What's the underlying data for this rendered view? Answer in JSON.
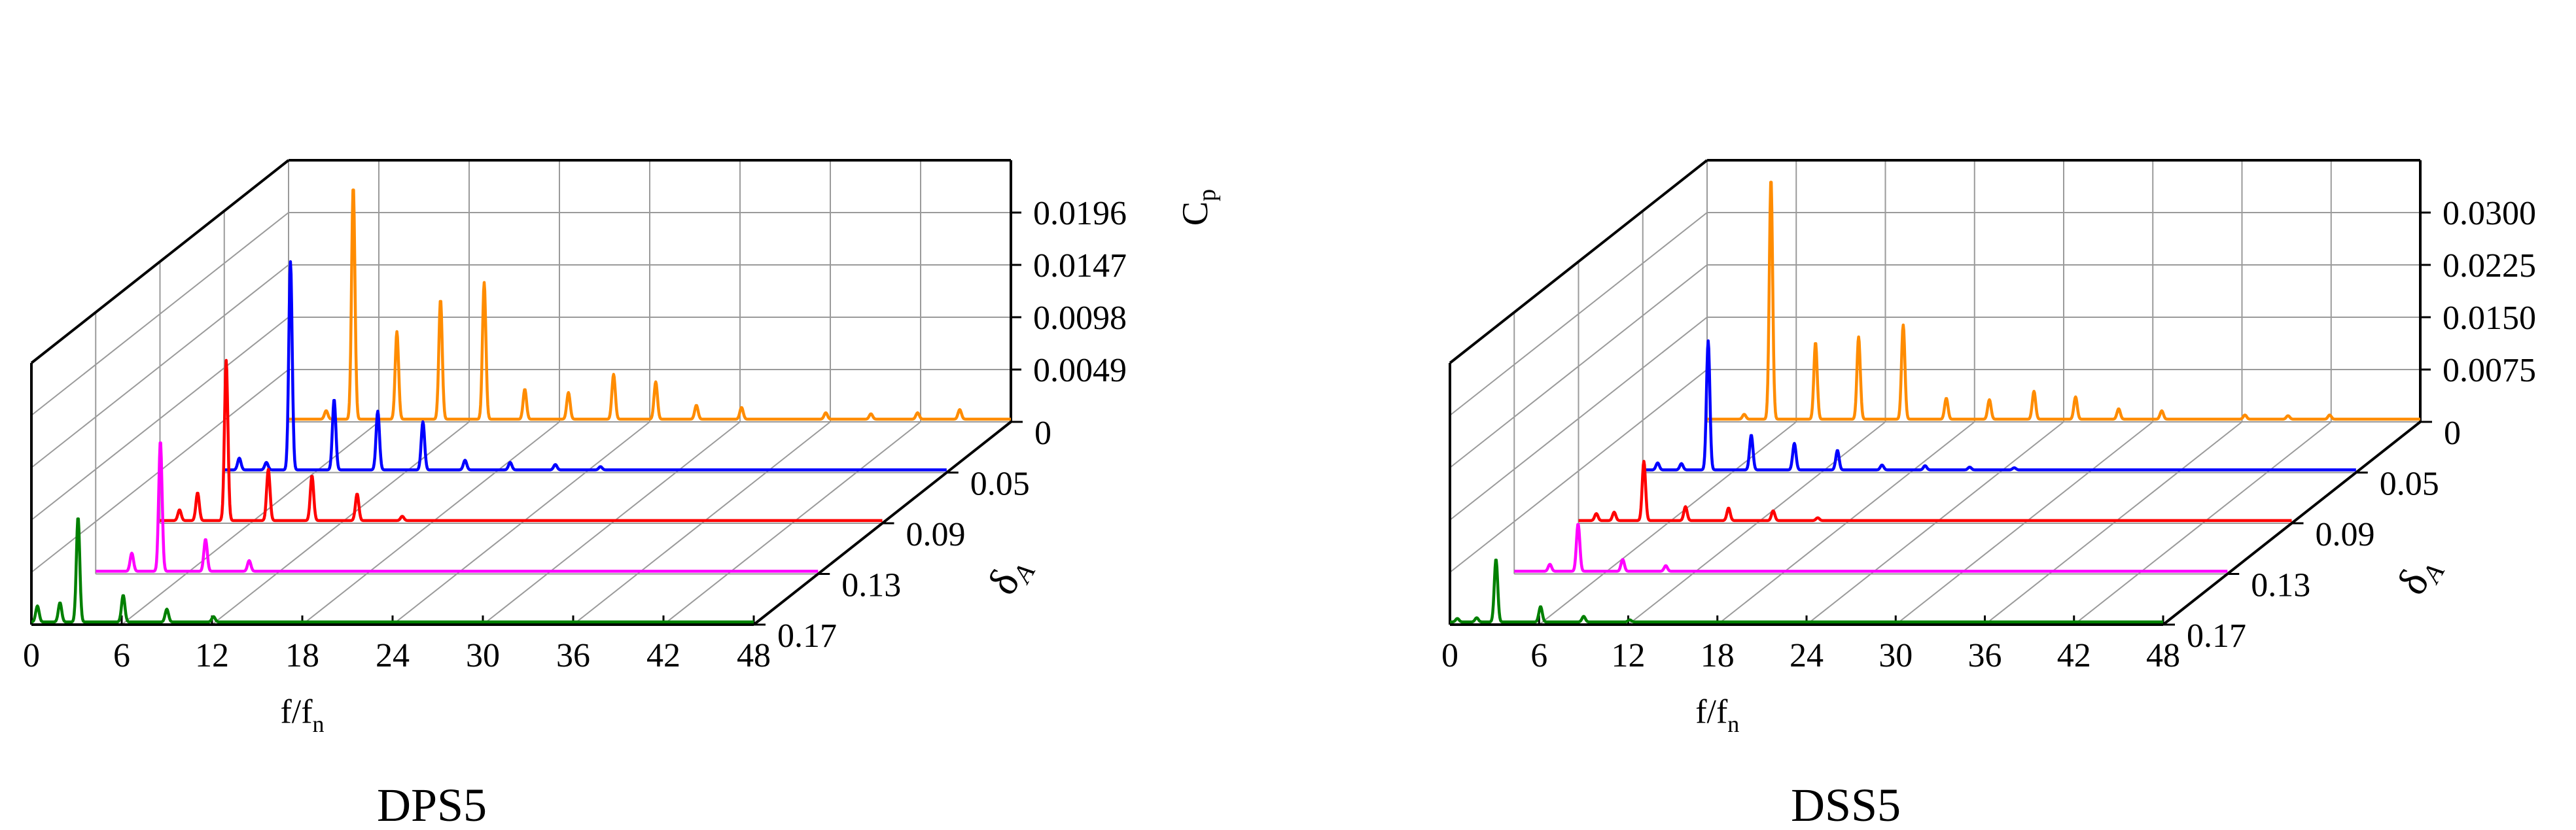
{
  "chart_data": [
    {
      "type": "line",
      "title": "DPS5",
      "xlabel": "f/f",
      "xlabel_sub": "n",
      "ylabel": "C",
      "ylabel_sub": "p",
      "zlabel": "δ",
      "zlabel_sub": "A",
      "x_ticks": [
        "0",
        "6",
        "12",
        "18",
        "24",
        "30",
        "36",
        "42",
        "48"
      ],
      "xlim": [
        0,
        48
      ],
      "y_ticks": [
        "0.0049",
        "0.0098",
        "0.0147",
        "0.0196"
      ],
      "ylim": [
        0,
        0.0245
      ],
      "grid": true,
      "series": [
        {
          "depth": "0",
          "color": "#ff8c00",
          "peaks": [
            [
              2.5,
              0.0008
            ],
            [
              4.3,
              0.0218
            ],
            [
              7.2,
              0.0082
            ],
            [
              10.1,
              0.0112
            ],
            [
              13.0,
              0.0128
            ],
            [
              15.7,
              0.0028
            ],
            [
              18.6,
              0.0025
            ],
            [
              21.6,
              0.0042
            ],
            [
              24.4,
              0.0035
            ],
            [
              27.1,
              0.0013
            ],
            [
              30.1,
              0.0011
            ],
            [
              35.7,
              0.0006
            ],
            [
              38.7,
              0.0005
            ],
            [
              41.8,
              0.0006
            ],
            [
              44.6,
              0.0009
            ]
          ]
        },
        {
          "depth": "0.05",
          "color": "#0000ff",
          "peaks": [
            [
              1.0,
              0.0011
            ],
            [
              2.8,
              0.0007
            ],
            [
              4.4,
              0.0195
            ],
            [
              7.3,
              0.0066
            ],
            [
              10.2,
              0.0055
            ],
            [
              13.2,
              0.0045
            ],
            [
              16.0,
              0.0009
            ],
            [
              19.0,
              0.0007
            ],
            [
              22.0,
              0.0005
            ],
            [
              25.0,
              0.0003
            ]
          ]
        },
        {
          "depth": "0.09",
          "color": "#ff0000",
          "peaks": [
            [
              1.3,
              0.001
            ],
            [
              2.5,
              0.0026
            ],
            [
              4.4,
              0.015
            ],
            [
              7.2,
              0.0048
            ],
            [
              10.1,
              0.0042
            ],
            [
              13.1,
              0.0025
            ],
            [
              16.1,
              0.0004
            ]
          ]
        },
        {
          "depth": "0.13",
          "color": "#ff00ff",
          "peaks": [
            [
              2.4,
              0.0017
            ],
            [
              4.3,
              0.0122
            ],
            [
              7.3,
              0.003
            ],
            [
              10.2,
              0.001
            ]
          ]
        },
        {
          "depth": "0.17",
          "color": "#008000",
          "peaks": [
            [
              0.4,
              0.0015
            ],
            [
              1.9,
              0.0018
            ],
            [
              3.1,
              0.0098
            ],
            [
              6.1,
              0.0025
            ],
            [
              9.0,
              0.0012
            ],
            [
              12.1,
              0.0005
            ]
          ]
        }
      ]
    },
    {
      "type": "line",
      "title": "DSS5",
      "xlabel": "f/f",
      "xlabel_sub": "n",
      "ylabel": "C",
      "ylabel_sub": "p",
      "zlabel": "δ",
      "zlabel_sub": "A",
      "x_ticks": [
        "0",
        "6",
        "12",
        "18",
        "24",
        "30",
        "36",
        "42",
        "48"
      ],
      "xlim": [
        0,
        48
      ],
      "y_ticks": [
        "0.0075",
        "0.0150",
        "0.0225",
        "0.0300"
      ],
      "ylim": [
        0,
        0.0375
      ],
      "grid": true,
      "series": [
        {
          "depth": "0",
          "color": "#ff8c00",
          "peaks": [
            [
              2.5,
              0.0007
            ],
            [
              4.3,
              0.0345
            ],
            [
              7.3,
              0.011
            ],
            [
              10.2,
              0.0118
            ],
            [
              13.2,
              0.0135
            ],
            [
              16.1,
              0.003
            ],
            [
              19.0,
              0.0028
            ],
            [
              22.0,
              0.004
            ],
            [
              24.8,
              0.0032
            ],
            [
              27.7,
              0.0015
            ],
            [
              30.6,
              0.0012
            ],
            [
              36.2,
              0.0006
            ],
            [
              39.1,
              0.0005
            ],
            [
              41.9,
              0.0006
            ]
          ]
        },
        {
          "depth": "0.05",
          "color": "#0000ff",
          "peaks": [
            [
              1.0,
              0.001
            ],
            [
              2.6,
              0.0009
            ],
            [
              4.4,
              0.0185
            ],
            [
              7.3,
              0.005
            ],
            [
              10.2,
              0.0038
            ],
            [
              13.1,
              0.0028
            ],
            [
              16.1,
              0.0007
            ],
            [
              19.0,
              0.0006
            ],
            [
              22.0,
              0.0004
            ],
            [
              25.0,
              0.0003
            ]
          ]
        },
        {
          "depth": "0.09",
          "color": "#ff0000",
          "peaks": [
            [
              1.2,
              0.001
            ],
            [
              2.4,
              0.0012
            ],
            [
              4.4,
              0.0085
            ],
            [
              7.2,
              0.002
            ],
            [
              10.1,
              0.0018
            ],
            [
              13.1,
              0.0014
            ],
            [
              16.1,
              0.0004
            ]
          ]
        },
        {
          "depth": "0.13",
          "color": "#ff00ff",
          "peaks": [
            [
              2.4,
              0.001
            ],
            [
              4.3,
              0.0068
            ],
            [
              7.3,
              0.0017
            ],
            [
              10.2,
              0.0008
            ]
          ]
        },
        {
          "depth": "0.17",
          "color": "#008000",
          "peaks": [
            [
              0.5,
              0.0005
            ],
            [
              1.8,
              0.0006
            ],
            [
              3.1,
              0.009
            ],
            [
              6.1,
              0.0022
            ],
            [
              9.0,
              0.0008
            ],
            [
              12.1,
              0.0003
            ]
          ]
        }
      ]
    }
  ]
}
